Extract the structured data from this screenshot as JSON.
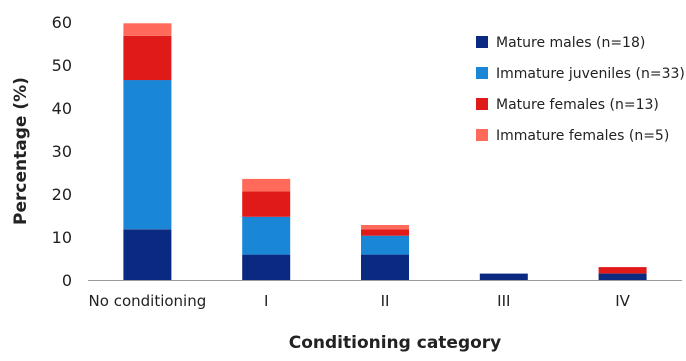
{
  "chart_data": {
    "type": "bar",
    "stacked": true,
    "categories": [
      "No conditioning",
      "I",
      "II",
      "III",
      "IV"
    ],
    "series": [
      {
        "name": "Mature males (n=18)",
        "color": "#0a2a82",
        "values": [
          11.8,
          5.9,
          5.9,
          1.5,
          1.5
        ]
      },
      {
        "name": "Immature juveniles (n=33)",
        "color": "#1a87d6",
        "values": [
          34.7,
          8.8,
          4.4,
          0,
          0
        ]
      },
      {
        "name": "Mature females (n=13)",
        "color": "#e01919",
        "values": [
          10.3,
          5.9,
          1.5,
          0,
          1.5
        ]
      },
      {
        "name": "Immature females (n=5)",
        "color": "#ff6a5a",
        "values": [
          2.9,
          2.9,
          1.0,
          0,
          0
        ]
      }
    ],
    "xlabel": "Conditioning category",
    "ylabel": "Percentage (%)",
    "ylim": [
      0,
      60
    ],
    "yticks": [
      0,
      10,
      20,
      30,
      40,
      50,
      60
    ],
    "grid": false,
    "legend_position": "top-right"
  }
}
